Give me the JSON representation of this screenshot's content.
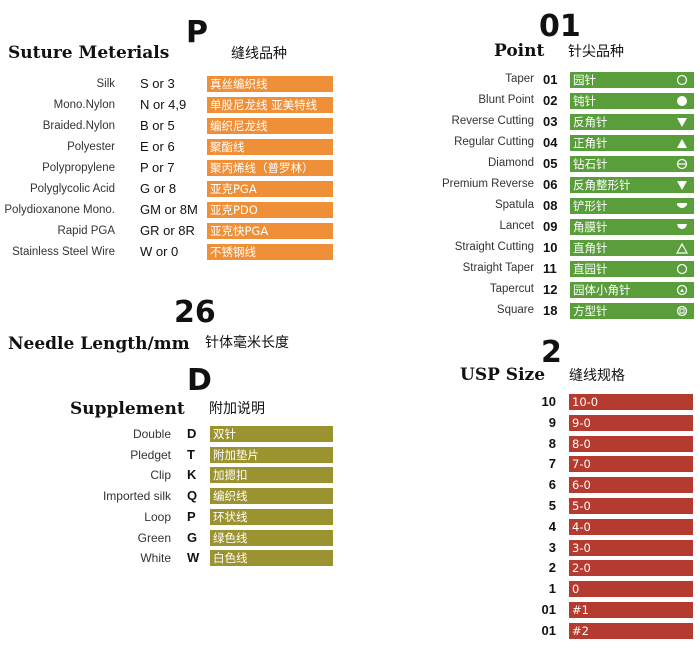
{
  "suture": {
    "code": "P",
    "title_en": "Suture Meterials",
    "title_zh": "缝线品种",
    "rows": [
      {
        "label": "Silk",
        "code": "S or 3",
        "zh": "真丝编织线"
      },
      {
        "label": "Mono.Nylon",
        "code": "N or 4,9",
        "zh": "单股尼龙线 亚美特线"
      },
      {
        "label": "Braided.Nylon",
        "code": "B or 5",
        "zh": "编织尼龙线"
      },
      {
        "label": "Polyester",
        "code": "E or 6",
        "zh": "聚酯线"
      },
      {
        "label": "Polypropylene",
        "code": "P or 7",
        "zh": "聚丙烯线（普罗林）"
      },
      {
        "label": "Polyglycolic Acid",
        "code": "G or 8",
        "zh": "亚克PGA"
      },
      {
        "label": "Polydioxanone Mono.",
        "code": "GM or 8M",
        "zh": "亚克PDO"
      },
      {
        "label": "Rapid  PGA",
        "code": "GR or 8R",
        "zh": "亚克快PGA"
      },
      {
        "label": "Stainless  Steel  Wire",
        "code": "W or 0",
        "zh": "不锈钢线"
      }
    ]
  },
  "needle_length": {
    "code": "26",
    "title_en": "Needle Length/mm",
    "title_zh": "针体毫米长度"
  },
  "supplement": {
    "code": "D",
    "title_en": "Supplement",
    "title_zh": "附加说明",
    "rows": [
      {
        "label": "Double",
        "code": "D",
        "zh": "双针"
      },
      {
        "label": "Pledget",
        "code": "T",
        "zh": "附加垫片"
      },
      {
        "label": "Clip",
        "code": "K",
        "zh": "加摁扣"
      },
      {
        "label": "Imported silk",
        "code": "Q",
        "zh": "编织线"
      },
      {
        "label": "Loop",
        "code": "P",
        "zh": "环状线"
      },
      {
        "label": "Green",
        "code": "G",
        "zh": "绿色线"
      },
      {
        "label": "White",
        "code": "W",
        "zh": "白色线"
      }
    ]
  },
  "point": {
    "code": "01",
    "title_en": "Point",
    "title_zh": "针尖品种",
    "rows": [
      {
        "label": "Taper",
        "code": "01",
        "zh": "园针",
        "icon": "circle-outline-icon"
      },
      {
        "label": "Blunt Point",
        "code": "02",
        "zh": "钝针",
        "icon": "circle-filled-icon"
      },
      {
        "label": "Reverse Cutting",
        "code": "03",
        "zh": "反角针",
        "icon": "triangle-down-filled-icon"
      },
      {
        "label": "Regular Cutting",
        "code": "04",
        "zh": "正角针",
        "icon": "triangle-up-filled-icon"
      },
      {
        "label": "Diamond",
        "code": "05",
        "zh": "钻石针",
        "icon": "circle-minus-icon"
      },
      {
        "label": "Premium Reverse",
        "code": "06",
        "zh": "反角整形针",
        "icon": "triangle-down-filled-icon"
      },
      {
        "label": "Spatula",
        "code": "08",
        "zh": "铲形针",
        "icon": "spatula-filled-icon"
      },
      {
        "label": "Lancet",
        "code": "09",
        "zh": "角膜针",
        "icon": "lancet-filled-icon"
      },
      {
        "label": "Straight Cutting",
        "code": "10",
        "zh": "直角针",
        "icon": "triangle-up-outline-icon"
      },
      {
        "label": "Straight Taper",
        "code": "11",
        "zh": "直园针",
        "icon": "circle-outline-icon"
      },
      {
        "label": "Tapercut",
        "code": "12",
        "zh": "园体小角针",
        "icon": "circle-triangle-icon"
      },
      {
        "label": "Square",
        "code": "18",
        "zh": "方型针",
        "icon": "circle-square-icon"
      }
    ]
  },
  "usp": {
    "code": "2",
    "title_en": "USP Size",
    "title_zh": "缝线规格",
    "rows": [
      {
        "code": "10",
        "zh": "10-0"
      },
      {
        "code": "9",
        "zh": "9-0"
      },
      {
        "code": "8",
        "zh": "8-0"
      },
      {
        "code": "7",
        "zh": "7-0"
      },
      {
        "code": "6",
        "zh": "6-0"
      },
      {
        "code": "5",
        "zh": "5-0"
      },
      {
        "code": "4",
        "zh": "4-0"
      },
      {
        "code": "3",
        "zh": "3-0"
      },
      {
        "code": "2",
        "zh": "2-0"
      },
      {
        "code": "1",
        "zh": "0"
      },
      {
        "code": "01",
        "zh": "#1"
      },
      {
        "code": "01",
        "zh": "#2"
      }
    ]
  }
}
